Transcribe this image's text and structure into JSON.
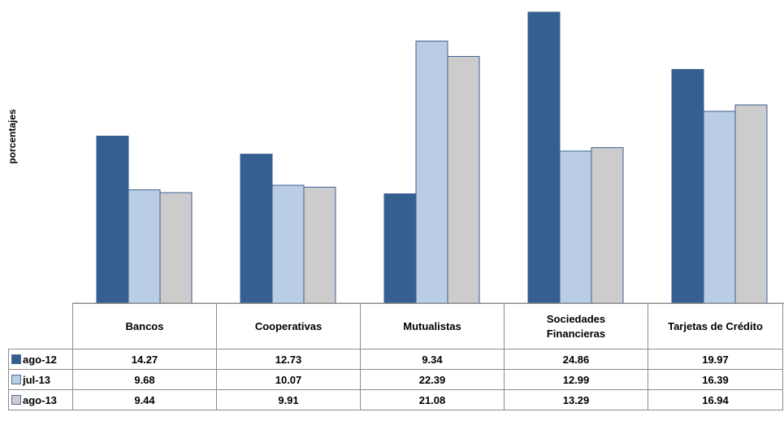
{
  "chart_data": {
    "type": "bar",
    "ylabel": "porcentajes",
    "categories": [
      "Bancos",
      "Cooperativas",
      "Mutualistas",
      "Sociedades Financieras",
      "Tarjetas de Crédito"
    ],
    "category_lines": [
      [
        "Bancos"
      ],
      [
        "Cooperativas"
      ],
      [
        "Mutualistas"
      ],
      [
        "Sociedades",
        "Financieras"
      ],
      [
        "Tarjetas de Crédito"
      ]
    ],
    "series": [
      {
        "name": "ago-12",
        "color": "#355f91",
        "values": [
          14.27,
          12.73,
          9.34,
          24.86,
          19.97
        ],
        "labels": [
          "14.27",
          "12.73",
          "9.34",
          "24.86",
          "19.97"
        ]
      },
      {
        "name": "jul-13",
        "color": "#b9cde5",
        "values": [
          9.68,
          10.07,
          22.39,
          12.99,
          16.39
        ],
        "labels": [
          "9.68",
          "10.07",
          "22.39",
          "12.99",
          "16.39"
        ]
      },
      {
        "name": "ago-13",
        "color": "#cccccc",
        "values": [
          9.44,
          9.91,
          21.08,
          13.29,
          16.94
        ],
        "labels": [
          "9.44",
          "9.91",
          "21.08",
          "13.29",
          "16.94"
        ]
      }
    ],
    "ylim": [
      0,
      25
    ],
    "grid": false,
    "legend": "data-table"
  }
}
